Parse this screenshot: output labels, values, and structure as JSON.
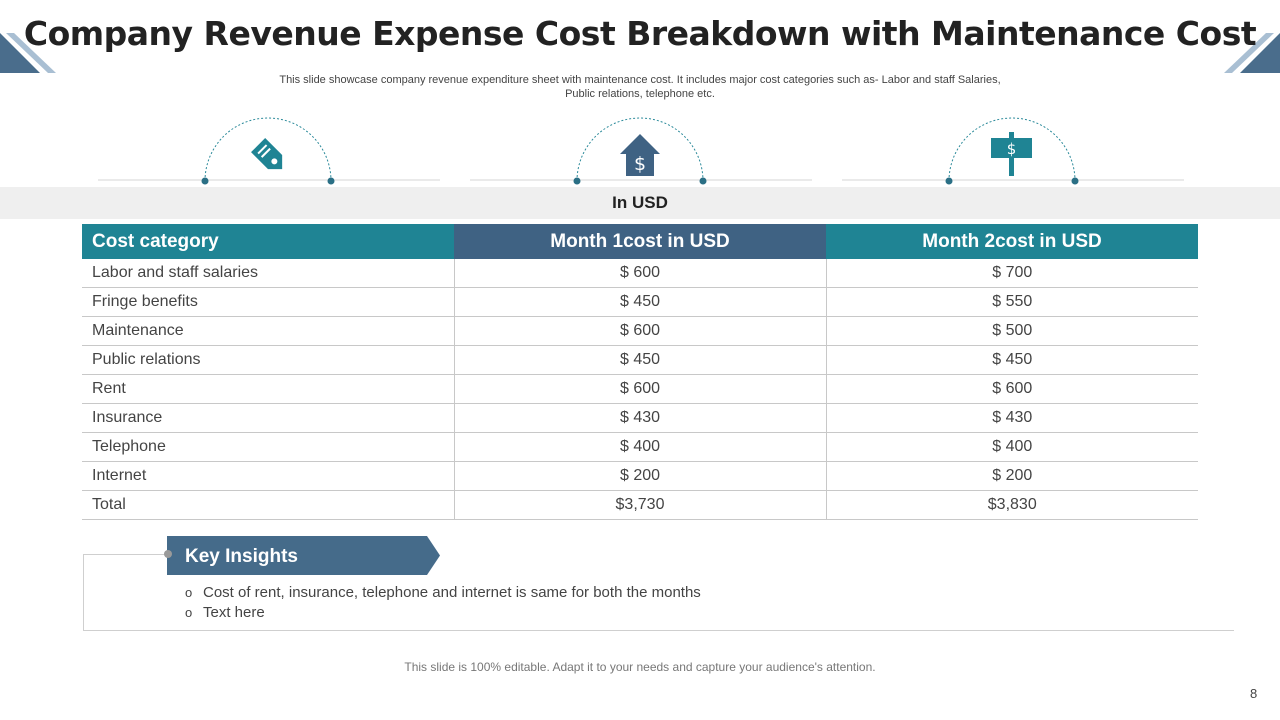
{
  "title": "Company Revenue Expense Cost Breakdown with Maintenance Cost",
  "subtitle_line1": "This slide showcase company revenue expenditure sheet with maintenance cost. It includes major cost categories such as- Labor and staff Salaries,",
  "subtitle_line2": "Public relations, telephone etc.",
  "icons": [
    "price-tag-icon",
    "house-dollar-icon",
    "dollar-signpost-icon"
  ],
  "currency_band": "In USD",
  "table": {
    "headers": [
      "Cost category",
      "Month 1cost in USD",
      "Month 2cost in USD"
    ],
    "rows": [
      {
        "category": "Labor and staff salaries",
        "m1": "$ 600",
        "m2": "$ 700"
      },
      {
        "category": "Fringe benefits",
        "m1": "$ 450",
        "m2": "$ 550"
      },
      {
        "category": "Maintenance",
        "m1": "$ 600",
        "m2": "$ 500"
      },
      {
        "category": "Public relations",
        "m1": "$ 450",
        "m2": "$ 450"
      },
      {
        "category": "Rent",
        "m1": "$ 600",
        "m2": "$ 600"
      },
      {
        "category": "Insurance",
        "m1": "$ 430",
        "m2": "$ 430"
      },
      {
        "category": "Telephone",
        "m1": "$ 400",
        "m2": "$ 400"
      },
      {
        "category": "Internet",
        "m1": "$ 200",
        "m2": "$ 200"
      },
      {
        "category": "Total",
        "m1": "$3,730",
        "m2": "$3,830"
      }
    ]
  },
  "insights": {
    "heading": "Key Insights",
    "bullets": [
      "Cost of rent, insurance, telephone and internet is same for both the months",
      "Text here"
    ]
  },
  "footer": "This slide is 100% editable. Adapt it to your needs and capture your audience's attention.",
  "page_number": "8",
  "colors": {
    "teal": "#1f8494",
    "navy": "#3f6283",
    "slate": "#456b8a"
  }
}
